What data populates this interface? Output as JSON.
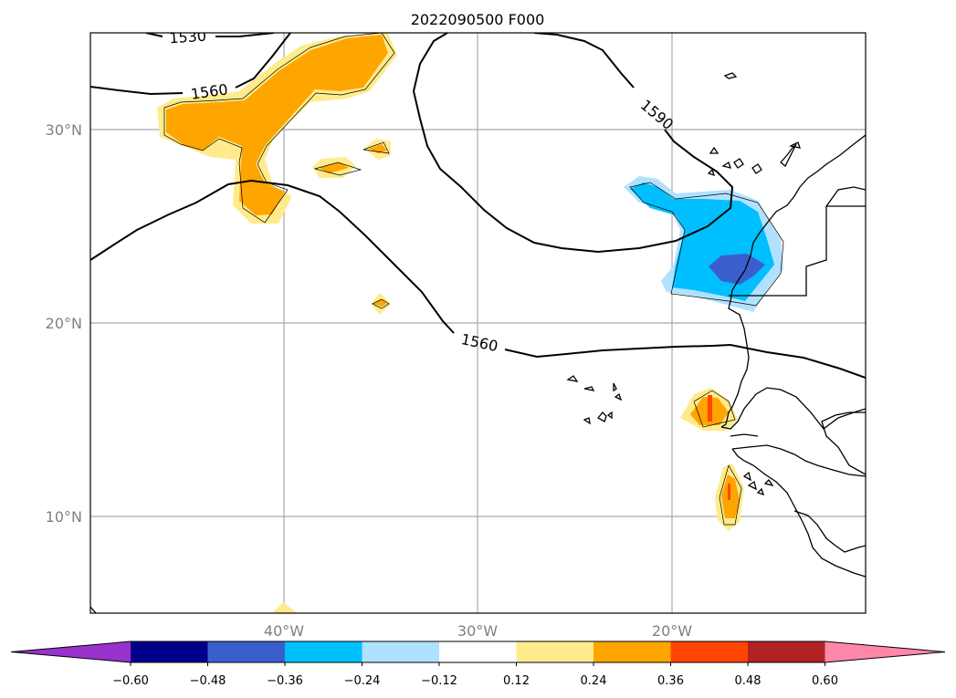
{
  "title": "2022090500 F000",
  "map": {
    "lon_range": [
      -50,
      -10
    ],
    "lat_range": [
      5,
      35
    ],
    "lat_ticks": [
      {
        "value": 30,
        "label": "30°N"
      },
      {
        "value": 20,
        "label": "20°N"
      },
      {
        "value": 10,
        "label": "10°N"
      }
    ],
    "lon_ticks": [
      {
        "value": -40,
        "label": "40°W"
      },
      {
        "value": -30,
        "label": "30°W"
      },
      {
        "value": -20,
        "label": "20°W"
      }
    ],
    "gridlines": true
  },
  "contours": {
    "labels": [
      "1530",
      "1560",
      "1590",
      "1560"
    ]
  },
  "colorbar": {
    "ticks": [
      "−0.60",
      "−0.48",
      "−0.36",
      "−0.24",
      "−0.12",
      "0.12",
      "0.24",
      "0.36",
      "0.48",
      "0.60"
    ],
    "colors": [
      "#9932cc",
      "#00008b",
      "#3a5fcd",
      "#00bfff",
      "#b0e2ff",
      "#ffffff",
      "#ffeb8b",
      "#ffa500",
      "#ff4500",
      "#b22222",
      "#ff88aa"
    ],
    "extend": "both"
  },
  "colors": {
    "light_yellow": "#ffeb8b",
    "orange": "#ffa500",
    "red_orange": "#ff4500",
    "light_blue": "#b0e2ff",
    "deep_sky_blue": "#00bfff",
    "royal_blue": "#3a5fcd"
  }
}
